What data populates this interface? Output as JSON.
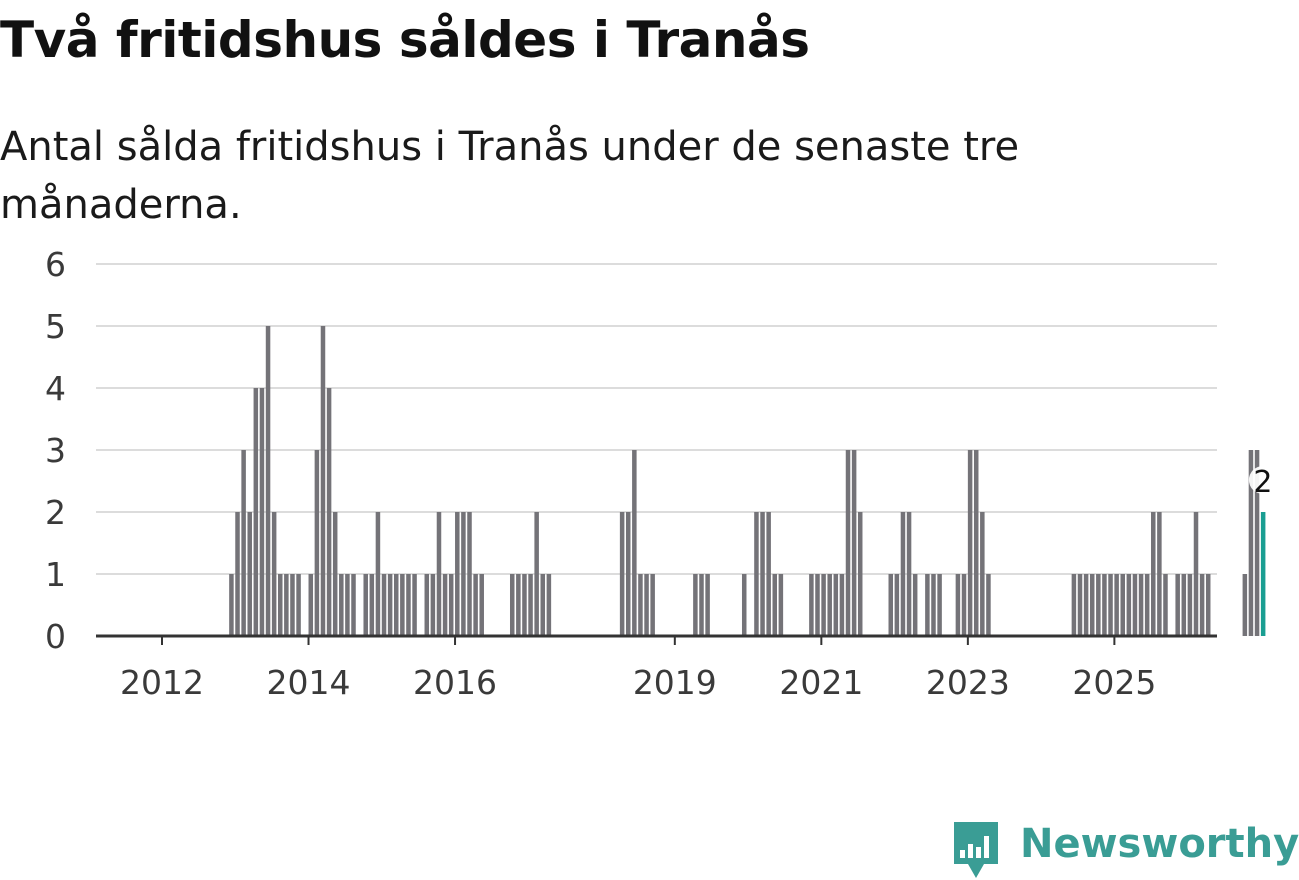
{
  "chart_data": {
    "type": "bar",
    "title": "Två fritidshus såldes i Tranås",
    "subtitle": "Antal sålda fritidshus i Tranås under de senaste tre månaderna.",
    "xlabel": "",
    "ylabel": "",
    "ylim": [
      0,
      6
    ],
    "yticks": [
      "0",
      "1",
      "2",
      "3",
      "4",
      "5",
      "6"
    ],
    "xticks": [
      {
        "label": "2012",
        "month_index": 0
      },
      {
        "label": "2014",
        "month_index": 24
      },
      {
        "label": "2016",
        "month_index": 48
      },
      {
        "label": "2019",
        "month_index": 84
      },
      {
        "label": "2021",
        "month_index": 108
      },
      {
        "label": "2023",
        "month_index": 132
      },
      {
        "label": "2025",
        "month_index": 156
      }
    ],
    "start": "2011-08",
    "values": [
      0,
      0,
      0,
      0,
      0,
      0,
      0,
      0,
      0,
      0,
      0,
      1,
      2,
      3,
      2,
      4,
      4,
      5,
      2,
      1,
      1,
      1,
      1,
      0,
      1,
      3,
      5,
      4,
      2,
      1,
      1,
      1,
      0,
      1,
      1,
      2,
      1,
      1,
      1,
      1,
      1,
      1,
      0,
      1,
      1,
      2,
      1,
      1,
      2,
      2,
      2,
      1,
      1,
      0,
      0,
      0,
      0,
      1,
      1,
      1,
      1,
      2,
      1,
      1,
      0,
      0,
      0,
      0,
      0,
      0,
      0,
      0,
      0,
      0,
      0,
      2,
      2,
      3,
      1,
      1,
      1,
      0,
      0,
      0,
      0,
      0,
      0,
      1,
      1,
      1,
      0,
      0,
      0,
      0,
      0,
      1,
      0,
      2,
      2,
      2,
      1,
      1,
      0,
      0,
      0,
      0,
      1,
      1,
      1,
      1,
      1,
      1,
      3,
      3,
      2,
      0,
      0,
      0,
      0,
      1,
      1,
      2,
      2,
      1,
      0,
      1,
      1,
      1,
      0,
      0,
      1,
      1,
      3,
      3,
      2,
      1,
      0,
      0,
      0,
      0,
      0,
      0,
      0,
      0,
      0,
      0,
      0,
      0,
      0,
      1,
      1,
      1,
      1,
      1,
      1,
      1,
      1,
      1,
      1,
      1,
      1,
      1,
      2,
      2,
      1,
      0,
      1,
      1,
      1,
      2,
      1,
      1,
      0,
      0,
      0,
      0,
      0,
      1,
      3,
      3,
      2
    ],
    "highlight": {
      "value": 2,
      "label": "2",
      "color": "#1a9e92"
    },
    "bar_color": "#747378"
  },
  "branding": {
    "name": "Newsworthy",
    "color": "#3a9d95"
  }
}
